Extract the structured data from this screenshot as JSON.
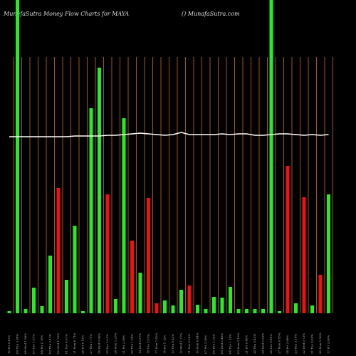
{
  "chart_data": {
    "type": "bar",
    "title": "MunafaSutra  Money Flow  Charts for MAYA",
    "subtitle": "() MunafaSutra.com",
    "categories": [
      "10 Fri 0.47%",
      "09 Thu 3.90%",
      "08 Wed 1.98%",
      "07 Tue 1.01%",
      "04 Fri 0.76%",
      "03 Thu 2.41%",
      "02 Wed 1.70%",
      "01 Tue 4.01%",
      "31 Mon 0.71%",
      "28 Fri 0.15%",
      "27 Thu 1.71%",
      "26 Wed 0.96%",
      "25 Tue 2.01%",
      "24 Mon 1.25%",
      "21 Fri 2.59%",
      "20 Thu 1.64%",
      "19 Wed 0.97%",
      "18 Tue 2.03%",
      "17 Mon 1.42%",
      "14 Fri 1.72%",
      "13 Thu 0.42%",
      "12 Wed 1.71%",
      "11 Tue 0.59%",
      "10 Mon 0.64%",
      "07 Fri 3.28%",
      "06 Thu 1.52%",
      "05 Wed 0.46%",
      "04 Tue 1.19%",
      "03 Mon 1.18%",
      "31 Fri 0.48%",
      "30 Thu 0.42%",
      "29 Wed 0.93%",
      "28 Tue 0.90%",
      "27 Mon 0.85%",
      "24 Fri 2.98%",
      "23 Thu 3.14%",
      "22 Wed 0.73%",
      "21 Tue 0.64%",
      "20 Mon 1.53%",
      "17 Fri 2.06%"
    ],
    "values": [
      3,
      440,
      6,
      36,
      10,
      81,
      176,
      47,
      123,
      3,
      288,
      345,
      167,
      20,
      274,
      102,
      57,
      162,
      14,
      18,
      11,
      33,
      39,
      12,
      6,
      23,
      22,
      37,
      6,
      6,
      6,
      6,
      440,
      3,
      207,
      14,
      163,
      11,
      54,
      167
    ],
    "colors": [
      "#22ee22",
      "#22ee22",
      "#22ee22",
      "#22ee22",
      "#22ee22",
      "#22ee22",
      "#ee1111",
      "#22ee22",
      "#22ee22",
      "#22ee22",
      "#22ee22",
      "#22ee22",
      "#ee1111",
      "#22ee22",
      "#22ee22",
      "#ee1111",
      "#22ee22",
      "#ee1111",
      "#ee1111",
      "#22ee22",
      "#22ee22",
      "#22ee22",
      "#ee1111",
      "#22ee22",
      "#22ee22",
      "#22ee22",
      "#22ee22",
      "#22ee22",
      "#22ee22",
      "#22ee22",
      "#22ee22",
      "#22ee22",
      "#22ee22",
      "#22ee22",
      "#ee1111",
      "#22ee22",
      "#ee1111",
      "#22ee22",
      "#ee1111",
      "#22ee22"
    ],
    "line_values": [
      248,
      248,
      248,
      248,
      248,
      248,
      248,
      248,
      249,
      249,
      249,
      249,
      250,
      250,
      251,
      252,
      253,
      252,
      251,
      250,
      251,
      254,
      251,
      251,
      251,
      251,
      252,
      251,
      252,
      252,
      250,
      250,
      251,
      252,
      252,
      251,
      250,
      251,
      250,
      251
    ],
    "line_color": "#ffffff",
    "ylim": [
      0,
      440
    ]
  }
}
